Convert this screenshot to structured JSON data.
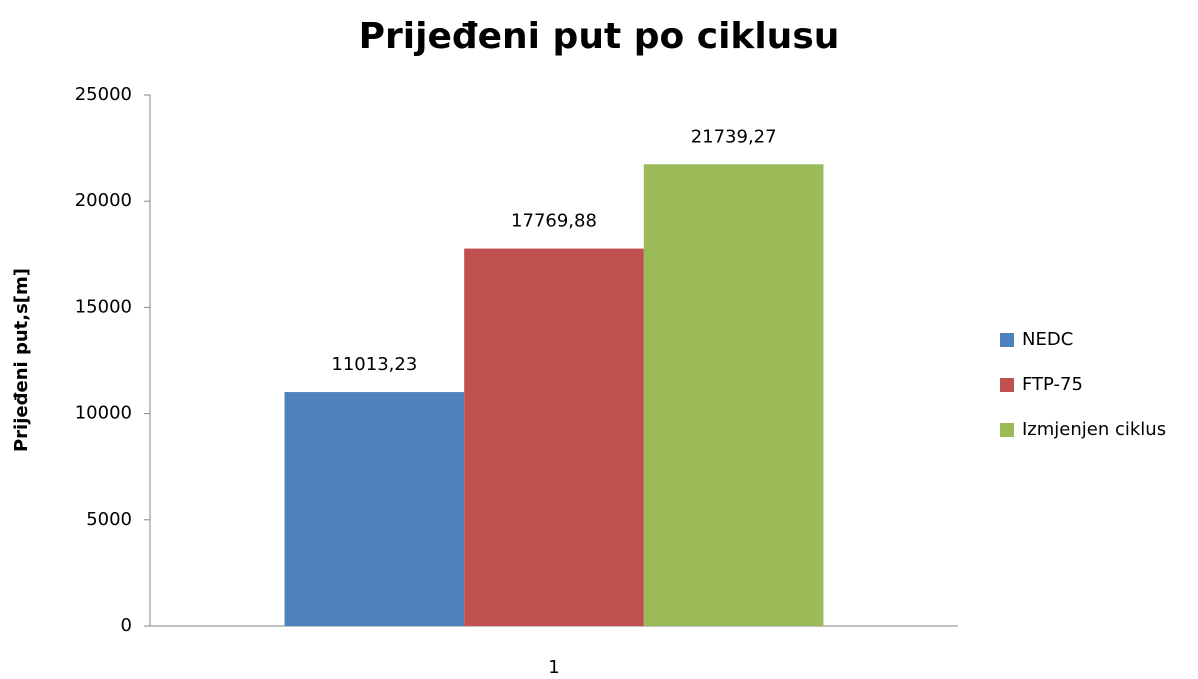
{
  "chart_data": {
    "type": "bar",
    "title": "Prijeđeni put po ciklusu",
    "y_label": "Prijeđeni put,s[m]",
    "categories": [
      "1"
    ],
    "series": [
      {
        "name": "NEDC",
        "color": "#4f81bd",
        "values": [
          11013.23
        ],
        "value_labels": [
          "11013,23"
        ]
      },
      {
        "name": "FTP-75",
        "color": "#c0504d",
        "values": [
          17769.88
        ],
        "value_labels": [
          "17769,88"
        ]
      },
      {
        "name": "Izmjenjen ciklus",
        "color": "#9bbb59",
        "values": [
          21739.27
        ],
        "value_labels": [
          "21739,27"
        ]
      }
    ],
    "ylim": [
      0,
      25000
    ],
    "yticks": [
      0,
      5000,
      10000,
      15000,
      20000,
      25000
    ],
    "grid": false,
    "legend": "right"
  }
}
